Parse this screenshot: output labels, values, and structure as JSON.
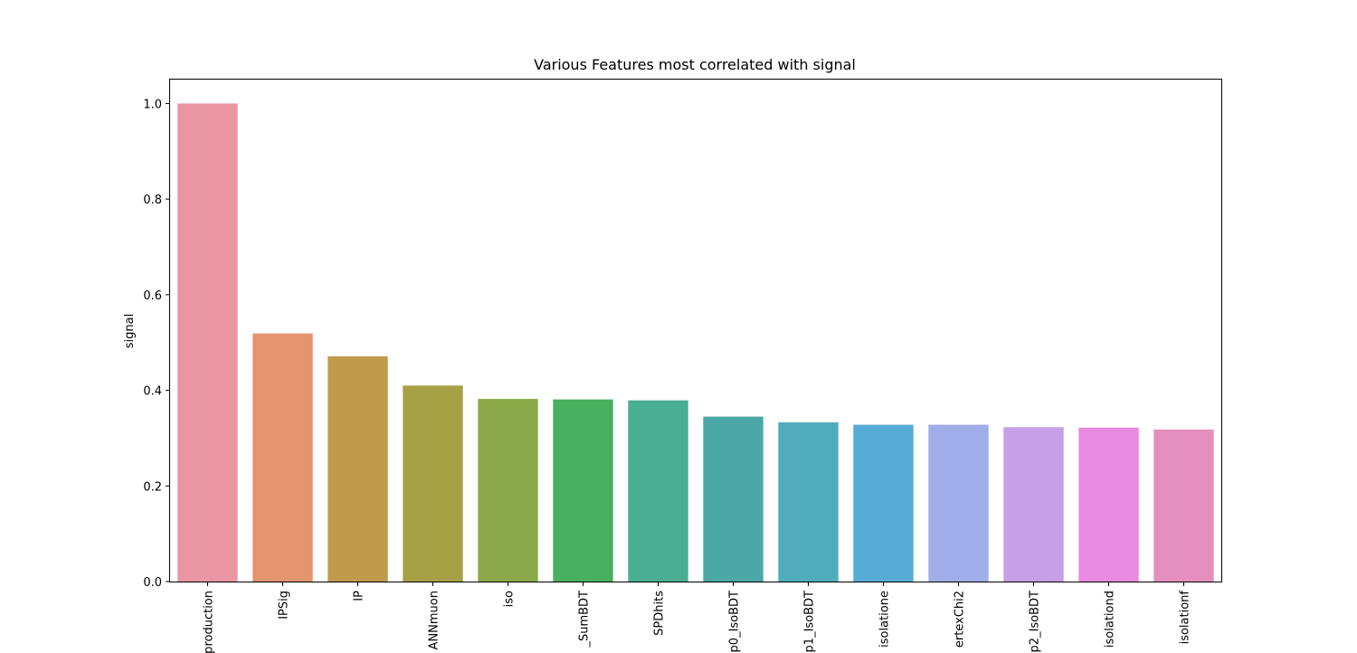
{
  "chart_data": {
    "type": "bar",
    "title": "Various Features most correlated with signal",
    "xlabel": "",
    "ylabel": "signal",
    "ylim": [
      0,
      1.05
    ],
    "yticks": [
      0.0,
      0.2,
      0.4,
      0.6,
      0.8,
      1.0
    ],
    "ytick_labels": [
      "0.0",
      "0.2",
      "0.4",
      "0.6",
      "0.8",
      "1.0"
    ],
    "categories": [
      "production",
      "IPSig",
      "IP",
      "ANNmuon",
      "iso",
      "_SumBDT",
      "SPDhits",
      "p0_IsoBDT",
      "p1_IsoBDT",
      "isolatione",
      "ertexChi2",
      "p2_IsoBDT",
      "isolationd",
      "isolationf"
    ],
    "values": [
      1.0,
      0.519,
      0.471,
      0.41,
      0.382,
      0.381,
      0.379,
      0.345,
      0.333,
      0.328,
      0.328,
      0.323,
      0.322,
      0.318
    ],
    "colors": [
      "#e996a2",
      "#e3956e",
      "#c09b4b",
      "#a7a145",
      "#8aa948",
      "#49b05f",
      "#4aae90",
      "#4ba8a6",
      "#4eacbb",
      "#57acd6",
      "#a1ade8",
      "#c69fe6",
      "#e78ae0",
      "#e58fbe"
    ],
    "grid": false,
    "legend": "none"
  }
}
